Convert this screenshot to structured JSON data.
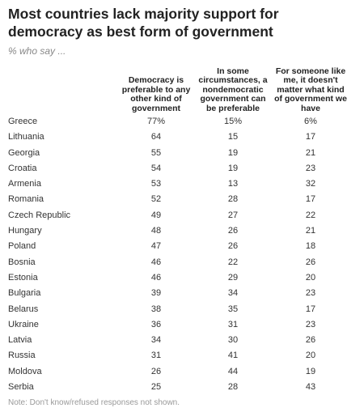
{
  "header": {
    "title": "Most countries lack majority support for democracy as best form of government",
    "subtitle": "% who say ..."
  },
  "table": {
    "columns": [
      "Democracy is\npreferable to any\nother kind of\ngovernment",
      "In some\ncircumstances, a\nnondemocratic\ngovernment can\nbe preferable",
      "For someone like\nme, it doesn't\nmatter what kind\nof government we\nhave"
    ],
    "rows": [
      [
        "Greece",
        "77%",
        "15%",
        "6%"
      ],
      [
        "Lithuania",
        "64",
        "15",
        "17"
      ],
      [
        "Georgia",
        "55",
        "19",
        "21"
      ],
      [
        "Croatia",
        "54",
        "19",
        "23"
      ],
      [
        "Armenia",
        "53",
        "13",
        "32"
      ],
      [
        "Romania",
        "52",
        "28",
        "17"
      ],
      [
        "Czech Republic",
        "49",
        "27",
        "22"
      ],
      [
        "Hungary",
        "48",
        "26",
        "21"
      ],
      [
        "Poland",
        "47",
        "26",
        "18"
      ],
      [
        "Bosnia",
        "46",
        "22",
        "26"
      ],
      [
        "Estonia",
        "46",
        "29",
        "20"
      ],
      [
        "Bulgaria",
        "39",
        "34",
        "23"
      ],
      [
        "Belarus",
        "38",
        "35",
        "17"
      ],
      [
        "Ukraine",
        "36",
        "31",
        "23"
      ],
      [
        "Latvia",
        "34",
        "30",
        "26"
      ],
      [
        "Russia",
        "31",
        "41",
        "20"
      ],
      [
        "Moldova",
        "26",
        "44",
        "19"
      ],
      [
        "Serbia",
        "25",
        "28",
        "43"
      ]
    ]
  },
  "footer": {
    "note": "Note: Don't know/refused responses not shown."
  }
}
